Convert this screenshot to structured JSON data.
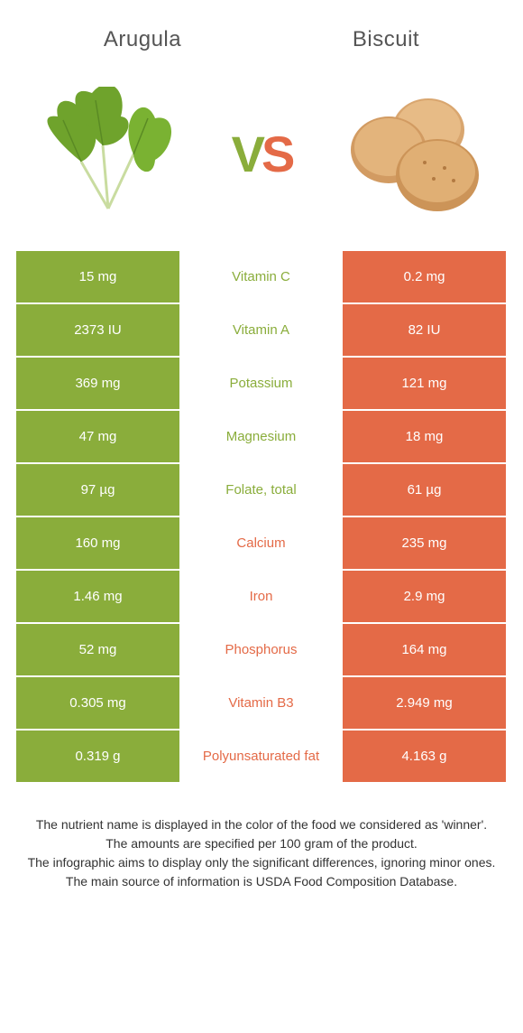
{
  "header": {
    "left_title": "Arugula",
    "right_title": "Biscuit"
  },
  "vs": {
    "v": "V",
    "s": "S"
  },
  "colors": {
    "green": "#8aad3b",
    "orange": "#e46a47",
    "green_text": "#8aad3b",
    "orange_text": "#e46a47"
  },
  "rows": [
    {
      "left": "15 mg",
      "mid": "Vitamin C",
      "right": "0.2 mg",
      "winner": "left"
    },
    {
      "left": "2373 IU",
      "mid": "Vitamin A",
      "right": "82 IU",
      "winner": "left"
    },
    {
      "left": "369 mg",
      "mid": "Potassium",
      "right": "121 mg",
      "winner": "left"
    },
    {
      "left": "47 mg",
      "mid": "Magnesium",
      "right": "18 mg",
      "winner": "left"
    },
    {
      "left": "97 µg",
      "mid": "Folate, total",
      "right": "61 µg",
      "winner": "left"
    },
    {
      "left": "160 mg",
      "mid": "Calcium",
      "right": "235 mg",
      "winner": "right"
    },
    {
      "left": "1.46 mg",
      "mid": "Iron",
      "right": "2.9 mg",
      "winner": "right"
    },
    {
      "left": "52 mg",
      "mid": "Phosphorus",
      "right": "164 mg",
      "winner": "right"
    },
    {
      "left": "0.305 mg",
      "mid": "Vitamin B3",
      "right": "2.949 mg",
      "winner": "right"
    },
    {
      "left": "0.319 g",
      "mid": "Polyunsaturated fat",
      "right": "4.163 g",
      "winner": "right"
    }
  ],
  "footer": {
    "line1": "The nutrient name is displayed in the color of the food we considered as 'winner'.",
    "line2": "The amounts are specified per 100 gram of the product.",
    "line3": "The infographic aims to display only the significant differences, ignoring minor ones.",
    "line4": "The main source of information is USDA Food Composition Database."
  }
}
